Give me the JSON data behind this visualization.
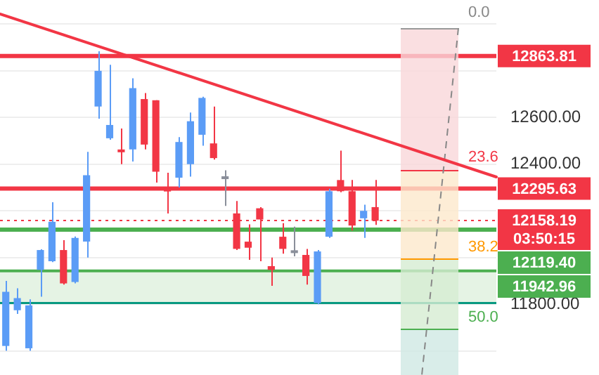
{
  "chart_data": {
    "type": "candlestick",
    "categories": [
      null,
      null,
      null,
      null,
      null,
      null,
      null,
      null,
      null,
      null,
      null,
      null,
      null,
      null,
      null,
      null,
      null,
      null,
      null,
      null,
      null,
      null,
      null,
      null,
      null,
      null,
      null,
      null,
      null,
      null,
      null,
      null,
      null,
      null,
      null,
      null,
      null,
      null,
      null,
      null,
      null,
      null,
      null
    ],
    "ohlc": [
      [
        11621,
        11900,
        11600,
        11853
      ],
      [
        11774,
        11868,
        11758,
        11826
      ],
      [
        11611,
        11821,
        11600,
        11795
      ],
      [
        11947,
        12035,
        11832,
        12032
      ],
      [
        11984,
        12237,
        11980,
        12153
      ],
      [
        12032,
        12074,
        11884,
        11889
      ],
      [
        11895,
        12090,
        11889,
        12084
      ],
      [
        12068,
        12453,
        12000,
        12353
      ],
      [
        12647,
        12884,
        12595,
        12800
      ],
      [
        12511,
        12826,
        12505,
        12568
      ],
      [
        12463,
        12553,
        12400,
        12453
      ],
      [
        12463,
        12768,
        12411,
        12726
      ],
      [
        12679,
        12705,
        12463,
        12484
      ],
      [
        12674,
        12674,
        12321,
        12368
      ],
      [
        12295,
        12363,
        12189,
        12284
      ],
      [
        12342,
        12516,
        12300,
        12495
      ],
      [
        12400,
        12621,
        12347,
        12584
      ],
      [
        12526,
        12689,
        12479,
        12684
      ],
      [
        12489,
        12647,
        12420,
        12426
      ],
      [
        12338,
        12374,
        12221,
        12348
      ],
      [
        12189,
        12242,
        12032,
        12037
      ],
      [
        12068,
        12142,
        11990,
        12042
      ],
      [
        12211,
        12216,
        11984,
        12163
      ],
      [
        11963,
        12000,
        11879,
        11947
      ],
      [
        12089,
        12147,
        12016,
        12037
      ],
      [
        12021,
        12132,
        12005,
        12031
      ],
      [
        12011,
        12037,
        11884,
        11921
      ],
      [
        11805,
        12032,
        11800,
        12026
      ],
      [
        12089,
        12295,
        12084,
        12284
      ],
      [
        12332,
        12458,
        12280,
        12284
      ],
      [
        12284,
        12332,
        12116,
        12137
      ],
      [
        12168,
        12226,
        12084,
        12200
      ],
      [
        12216,
        12332,
        12140,
        12158
      ],
      null,
      null,
      null,
      null,
      null,
      null,
      null,
      null,
      null,
      null
    ],
    "colors": [
      "#5b9cf6",
      "#5b9cf6",
      "#5b9cf6",
      "#5b9cf6",
      "#5b9cf6",
      "#f23645",
      "#5b9cf6",
      "#5b9cf6",
      "#5b9cf6",
      "#5b9cf6",
      "#f23645",
      "#5b9cf6",
      "#f23645",
      "#f23645",
      "#f23645",
      "#5b9cf6",
      "#5b9cf6",
      "#5b9cf6",
      "#f23645",
      "#8a8f9a",
      "#f23645",
      "#f23645",
      "#f23645",
      "#f23645",
      "#f23645",
      "#8a8f9a",
      "#f23645",
      "#5b9cf6",
      "#5b9cf6",
      "#f23645",
      "#f23645",
      "#5b9cf6",
      "#f23645",
      null,
      null,
      null,
      null,
      null,
      null,
      null,
      null,
      null,
      null
    ],
    "ylim": [
      11600,
      13000
    ],
    "yticks": [
      {
        "value": 11600,
        "label": null
      },
      {
        "value": 11800,
        "label": "11800.00"
      },
      {
        "value": 12000,
        "label": null
      },
      {
        "value": 12200,
        "label": null
      },
      {
        "value": 12400,
        "label": "12400.00"
      },
      {
        "value": 12600,
        "label": "12600.00"
      },
      {
        "value": 12800,
        "label": null
      },
      {
        "value": 13000,
        "label": null
      }
    ],
    "tick_labels": "y",
    "grid": "y",
    "bands": [
      {
        "axis": "y",
        "from": 11805,
        "to": 11942.96,
        "color": "#e5f3e4"
      }
    ],
    "ref_lines": [
      {
        "axis": "y",
        "value": 12863.81,
        "label": "12863.81",
        "color": "#f23645",
        "line_style": "solid"
      },
      {
        "axis": "y",
        "value": 12295.63,
        "label": "12295.63",
        "color": "#f23645",
        "line_style": "solid"
      },
      {
        "axis": "y",
        "value": 12158.19,
        "label": "12158.19\n03:50:15",
        "color": "#f23645",
        "line_style": "dotted"
      },
      {
        "axis": "y",
        "value": 12119.4,
        "label": "12119.40",
        "color": "#4caf50",
        "line_style": "solid"
      },
      {
        "axis": "y",
        "value": 11942.96,
        "label": "11942.96",
        "color": "#4caf50",
        "line_style": "solid"
      },
      {
        "axis": "y",
        "value": 11805,
        "color": "#089981",
        "line_style": "solid"
      }
    ],
    "annotations": [
      "0.0",
      "23.6",
      "38.2",
      "50.0"
    ]
  }
}
